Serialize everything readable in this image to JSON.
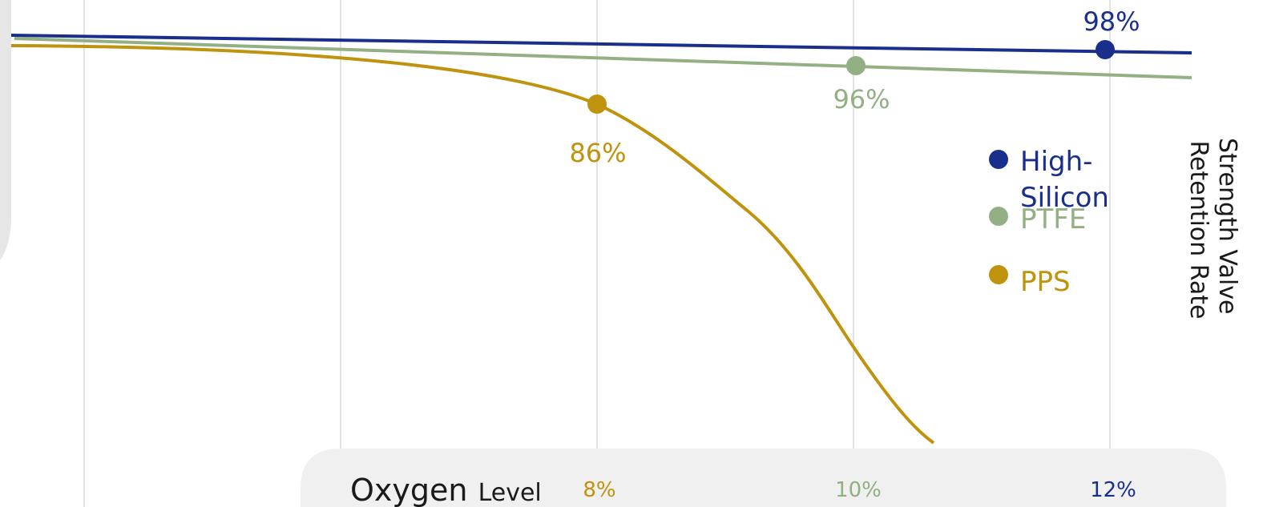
{
  "chart_data": {
    "type": "line",
    "xlabel_parts": [
      "Oxygen",
      "Level"
    ],
    "ylabel_lines": [
      "Strength Valve",
      "Retention Rate"
    ],
    "x_ticks": [
      {
        "label": "8%",
        "color": "#c0930e"
      },
      {
        "label": "10%",
        "color": "#90b080"
      },
      {
        "label": "12%",
        "color": "#1a2e8c"
      }
    ],
    "series": [
      {
        "name": "High-Silicon",
        "legend_lines": [
          "High-",
          "Silicon"
        ],
        "color": "#1a2e8c",
        "marker": {
          "x": 12,
          "y": 98,
          "label": "98%"
        }
      },
      {
        "name": "PTFE",
        "legend_lines": [
          "PTFE"
        ],
        "color": "#93b085",
        "marker": {
          "x": 10,
          "y": 96,
          "label": "96%"
        }
      },
      {
        "name": "PPS",
        "legend_lines": [
          "PPS"
        ],
        "color": "#c0930e",
        "marker": {
          "x": 8,
          "y": 86,
          "label": "86%"
        }
      }
    ]
  },
  "colors": {
    "grid": "#d9d9d9",
    "side_panel": "#e6e6e6",
    "x_panel": "#f0f0f0",
    "axis_label": "#1a1a1a"
  }
}
